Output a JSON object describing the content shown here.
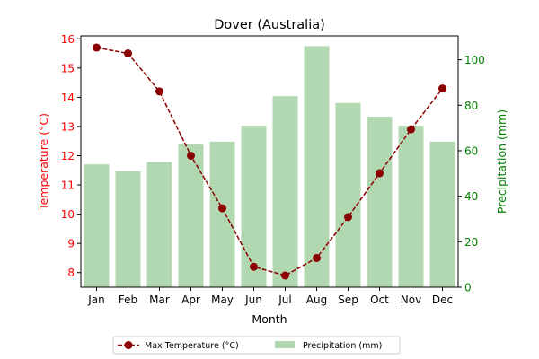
{
  "chart_data": {
    "type": "bar+line",
    "title": "Dover (Australia)",
    "xlabel": "Month",
    "ylabel_left": "Temperature (°C)",
    "ylabel_right": "Precipitation (mm)",
    "categories": [
      "Jan",
      "Feb",
      "Mar",
      "Apr",
      "May",
      "Jun",
      "Jul",
      "Aug",
      "Sep",
      "Oct",
      "Nov",
      "Dec"
    ],
    "temperature": {
      "name": "Max Temperature (°C)",
      "values": [
        15.7,
        15.5,
        14.2,
        12.0,
        10.2,
        8.2,
        7.9,
        8.5,
        9.9,
        11.4,
        12.9,
        14.3
      ],
      "color": "#8b0000",
      "ylim": [
        7.5,
        16.1
      ],
      "ticks": [
        8,
        9,
        10,
        11,
        12,
        13,
        14,
        15,
        16
      ]
    },
    "precipitation": {
      "name": "Precipitation (mm)",
      "values": [
        54,
        51,
        55,
        63,
        64,
        71,
        84,
        106,
        81,
        75,
        71,
        64
      ],
      "color": "#b2d8b2",
      "ylim": [
        0,
        110.5
      ],
      "ticks": [
        0,
        20,
        40,
        60,
        80,
        100
      ]
    },
    "left_axis_color": "#ff0000",
    "right_axis_color": "#008000",
    "legend_position": "bottom-center"
  }
}
